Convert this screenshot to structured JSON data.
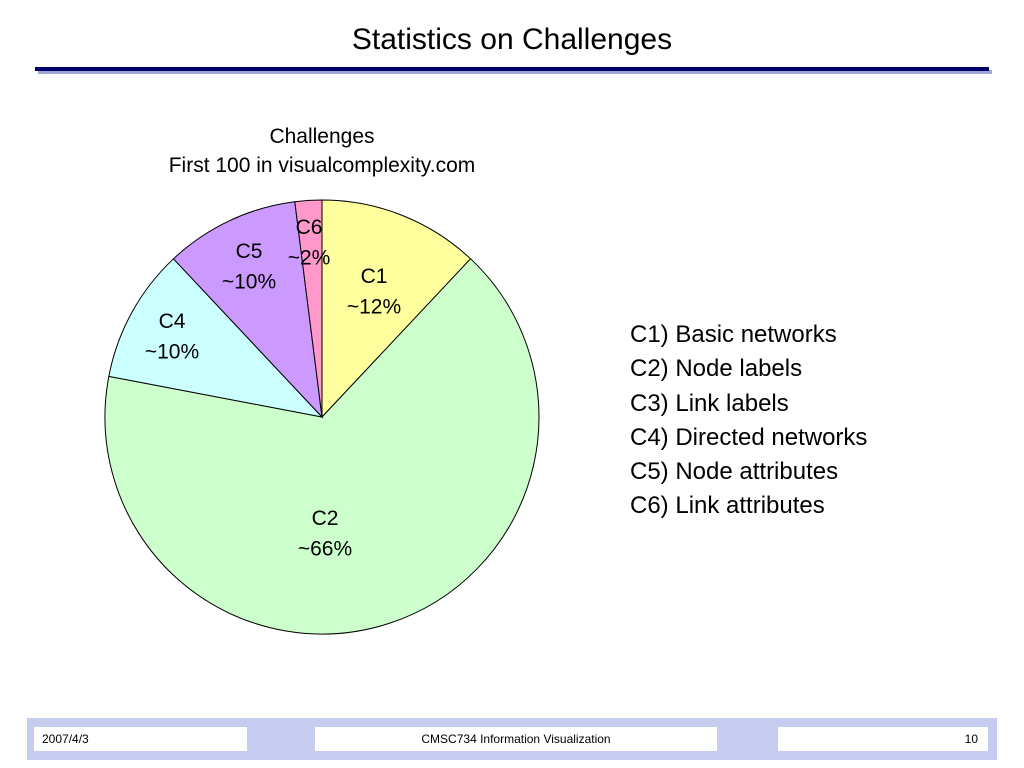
{
  "slide": {
    "title": "Statistics on Challenges"
  },
  "chart_data": {
    "type": "pie",
    "title": "Challenges",
    "subtitle": "First 100 in visualcomplexity.com",
    "start_angle_deg": 0,
    "direction": "clockwise",
    "slices": [
      {
        "name": "C1",
        "value_label": "~12%",
        "value": 12,
        "color": "#ffff9e"
      },
      {
        "name": "C2",
        "value_label": "~66%",
        "value": 66,
        "color": "#ccffcc"
      },
      {
        "name": "C4",
        "value_label": "~10%",
        "value": 10,
        "color": "#ccffff"
      },
      {
        "name": "C5",
        "value_label": "~10%",
        "value": 10,
        "color": "#cc99ff"
      },
      {
        "name": "C6",
        "value_label": "~2%",
        "value": 2,
        "color": "#ff99cc"
      }
    ],
    "legend": [
      "C1) Basic networks",
      "C2) Node labels",
      "C3) Link labels",
      "C4) Directed networks",
      "C5) Node attributes",
      "C6) Link attributes"
    ]
  },
  "footer": {
    "date": "2007/4/3",
    "course": "CMSC734 Information Visualization",
    "page": "10"
  }
}
